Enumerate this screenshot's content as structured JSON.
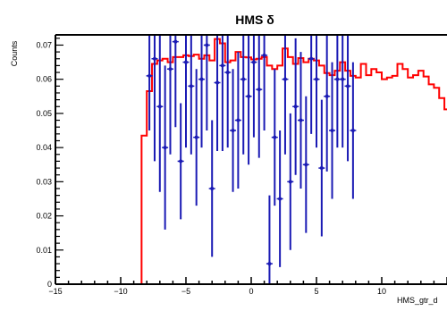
{
  "chart_data": {
    "type": "line",
    "title": "HMS δ",
    "xlabel": "HMS_gtr_d",
    "ylabel": "Counts",
    "xlim": [
      -15,
      15
    ],
    "ylim": [
      0,
      0.073
    ],
    "x_ticks": [
      -15,
      -10,
      -5,
      0,
      5,
      10
    ],
    "y_ticks": [
      0,
      0.01,
      0.02,
      0.03,
      0.04,
      0.05,
      0.06,
      0.07
    ],
    "x_tick_labels": [
      "−15",
      "−10",
      "−5",
      "0",
      "5",
      "10"
    ],
    "y_tick_labels": [
      "0",
      "0.01",
      "0.02",
      "0.03",
      "0.04",
      "0.05",
      "0.06",
      "0.07"
    ],
    "colors": {
      "histogram": "#ff0000",
      "data": "#1a1ab4"
    },
    "series": [
      {
        "kind": "step-histogram",
        "bin_width": 0.4,
        "edges_start": -8.4,
        "values": [
          0.0435,
          0.0565,
          0.0645,
          0.0655,
          0.066,
          0.065,
          0.0665,
          0.0665,
          0.067,
          0.0668,
          0.0672,
          0.066,
          0.067,
          0.0655,
          0.0718,
          0.0705,
          0.065,
          0.0655,
          0.068,
          0.0665,
          0.0664,
          0.0658,
          0.066,
          0.0665,
          0.064,
          0.063,
          0.064,
          0.069,
          0.0665,
          0.0645,
          0.0662,
          0.065,
          0.066,
          0.0655,
          0.064,
          0.0618,
          0.0612,
          0.0625,
          0.065,
          0.0625,
          0.061,
          0.0605,
          0.0645,
          0.0612,
          0.063,
          0.062,
          0.06,
          0.0605,
          0.061,
          0.0645,
          0.063,
          0.0605,
          0.0612,
          0.0625,
          0.0608,
          0.0585,
          0.0575,
          0.0545,
          0.0512,
          0.0485,
          0.0455,
          0.0425,
          0.0395,
          0.0365,
          0.034,
          0.0315,
          0.029,
          0.0268,
          0.0245,
          0.0225,
          0.0205,
          0.0185,
          0.0165,
          0.0148,
          0.0132,
          0.0118
        ]
      },
      {
        "kind": "points-with-errors",
        "x": [
          -7.8,
          -7.4,
          -7.0,
          -6.6,
          -6.2,
          -5.8,
          -5.4,
          -5.0,
          -4.6,
          -4.2,
          -3.8,
          -3.4,
          -3.0,
          -2.6,
          -2.2,
          -1.8,
          -1.4,
          -1.0,
          -0.6,
          -0.2,
          0.2,
          0.6,
          1.0,
          1.4,
          1.8,
          2.2,
          2.6,
          3.0,
          3.4,
          3.8,
          4.2,
          4.6,
          5.0,
          5.4,
          5.8,
          6.2,
          6.6,
          7.0,
          7.4,
          7.8
        ],
        "y": [
          0.061,
          0.066,
          0.052,
          0.04,
          0.063,
          0.071,
          0.036,
          0.065,
          0.058,
          0.043,
          0.06,
          0.07,
          0.028,
          0.059,
          0.064,
          0.062,
          0.045,
          0.048,
          0.06,
          0.055,
          0.065,
          0.057,
          0.067,
          0.006,
          0.043,
          0.025,
          0.06,
          0.03,
          0.052,
          0.048,
          0.035,
          0.066,
          0.06,
          0.034,
          0.055,
          0.045,
          0.06,
          0.06,
          0.058,
          0.045
        ],
        "err": [
          0.016,
          0.03,
          0.025,
          0.024,
          0.025,
          0.025,
          0.017,
          0.025,
          0.02,
          0.02,
          0.02,
          0.025,
          0.02,
          0.02,
          0.025,
          0.022,
          0.018,
          0.02,
          0.022,
          0.02,
          0.022,
          0.02,
          0.022,
          0.02,
          0.02,
          0.02,
          0.022,
          0.02,
          0.02,
          0.02,
          0.02,
          0.022,
          0.02,
          0.02,
          0.022,
          0.02,
          0.02,
          0.02,
          0.022,
          0.02
        ]
      }
    ]
  }
}
